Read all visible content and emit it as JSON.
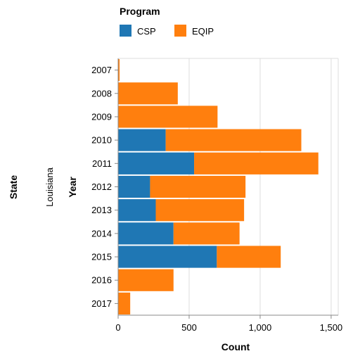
{
  "chart_data": {
    "type": "bar",
    "orientation": "horizontal",
    "stacked": true,
    "facet_title": "State",
    "facet_value": "Louisiana",
    "ylabel": "Year",
    "xlabel": "Count",
    "categories": [
      "2007",
      "2008",
      "2009",
      "2010",
      "2011",
      "2012",
      "2013",
      "2014",
      "2015",
      "2016",
      "2017"
    ],
    "series": [
      {
        "name": "CSP",
        "color": "#1f77b4",
        "values": [
          0,
          0,
          0,
          335,
          535,
          225,
          265,
          390,
          695,
          0,
          0
        ]
      },
      {
        "name": "EQIP",
        "color": "#ff7f0e",
        "values": [
          10,
          420,
          700,
          955,
          875,
          672,
          622,
          465,
          450,
          390,
          85
        ]
      }
    ],
    "xlim": [
      0,
      1550
    ],
    "xticks": [
      0,
      500,
      1000,
      1500
    ],
    "xtick_labels": [
      "0",
      "500",
      "1,000",
      "1,500"
    ],
    "grid": true,
    "legend": {
      "title": "Program",
      "position": "top-left"
    }
  }
}
